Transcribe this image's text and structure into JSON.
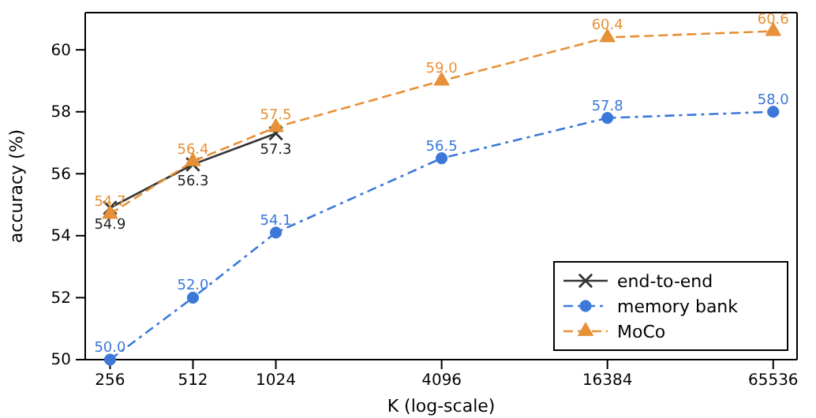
{
  "chart_data": {
    "type": "line",
    "xlabel": "K (log-scale)",
    "ylabel": "accuracy (%)",
    "log": "x",
    "xlim": [
      208,
      80000
    ],
    "xticks": [
      256,
      512,
      1024,
      4096,
      16384,
      65536
    ],
    "ylim": [
      50,
      61.2
    ],
    "yticks": [
      50,
      52,
      54,
      56,
      58,
      60
    ],
    "x": [
      256,
      512,
      1024,
      4096,
      16384,
      65536
    ],
    "series": [
      {
        "name": "end-to-end",
        "color": "#333333",
        "marker": "cross",
        "line_style": "solid",
        "values": [
          54.9,
          56.3,
          57.3,
          null,
          null,
          null
        ],
        "value_labels": [
          "54.9",
          "56.3",
          "57.3",
          null,
          null,
          null
        ]
      },
      {
        "name": "memory bank",
        "color": "#3b78d8",
        "marker": "circle",
        "line_style": "dashdot",
        "values": [
          50.0,
          52.0,
          54.1,
          56.5,
          57.8,
          58.0
        ],
        "value_labels": [
          "50.0",
          "52.0",
          "54.1",
          "56.5",
          "57.8",
          "58.0"
        ]
      },
      {
        "name": "MoCo",
        "color": "#e69138",
        "marker": "triangle",
        "line_style": "dashed",
        "values": [
          54.7,
          56.4,
          57.5,
          59.0,
          60.4,
          60.6
        ],
        "value_labels": [
          "54.7",
          "56.4",
          "57.5",
          "59.0",
          "60.4",
          "60.6"
        ]
      }
    ],
    "legend": "bottom right",
    "grid": false
  }
}
